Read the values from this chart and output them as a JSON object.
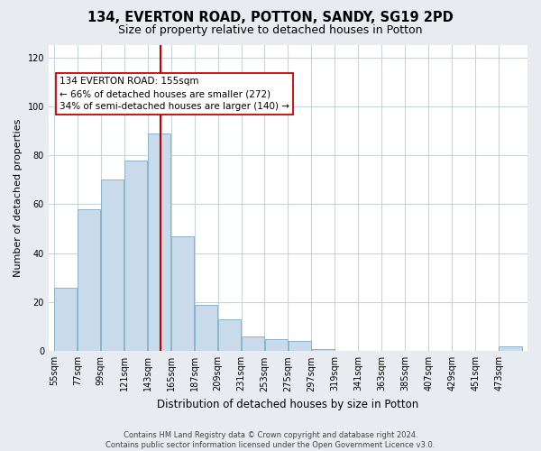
{
  "title": "134, EVERTON ROAD, POTTON, SANDY, SG19 2PD",
  "subtitle": "Size of property relative to detached houses in Potton",
  "xlabel": "Distribution of detached houses by size in Potton",
  "ylabel": "Number of detached properties",
  "footer_line1": "Contains HM Land Registry data © Crown copyright and database right 2024.",
  "footer_line2": "Contains public sector information licensed under the Open Government Licence v3.0.",
  "bar_edges": [
    55,
    77,
    99,
    121,
    143,
    165,
    187,
    209,
    231,
    253,
    275,
    297,
    319,
    341,
    363,
    385,
    407,
    429,
    451,
    473,
    495
  ],
  "bar_heights": [
    26,
    58,
    70,
    78,
    89,
    47,
    19,
    13,
    6,
    5,
    4,
    1,
    0,
    0,
    0,
    0,
    0,
    0,
    0,
    2
  ],
  "bar_color": "#c9daea",
  "bar_edgecolor": "#8ab4cc",
  "vline_x": 155,
  "vline_color": "#bb0000",
  "annotation_title": "134 EVERTON ROAD: 155sqm",
  "annotation_line1": "← 66% of detached houses are smaller (272)",
  "annotation_line2": "34% of semi-detached houses are larger (140) →",
  "ylim": [
    0,
    125
  ],
  "yticks": [
    0,
    20,
    40,
    60,
    80,
    100,
    120
  ],
  "xlim_left": 50,
  "xlim_right": 500,
  "background_color": "#e8ecf0",
  "plot_background_color": "#ffffff",
  "grid_color": "#c8d4dc",
  "title_fontsize": 10.5,
  "subtitle_fontsize": 9,
  "ylabel_fontsize": 8,
  "xlabel_fontsize": 8.5,
  "tick_fontsize": 7,
  "footer_fontsize": 6
}
